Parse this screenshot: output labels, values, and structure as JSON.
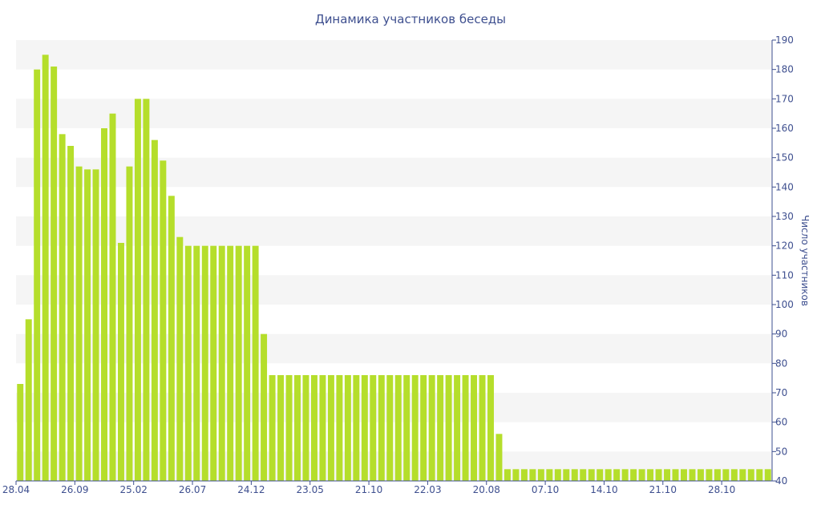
{
  "chart_data": {
    "type": "bar",
    "title": "Динамика участников беседы",
    "xlabel": "",
    "ylabel": "Число участников",
    "ylim": [
      40,
      190
    ],
    "y_ticks": [
      40,
      50,
      60,
      70,
      80,
      90,
      100,
      110,
      120,
      130,
      140,
      150,
      160,
      170,
      180,
      190
    ],
    "y_axis_side": "right",
    "grid": "alternating horizontal bands",
    "colors": {
      "bar": "#b5de2b",
      "band": "#f5f5f5",
      "axis": "#3e4f8f"
    },
    "x_tick_labels": [
      {
        "label": "28.04",
        "index": 0
      },
      {
        "label": "26.09",
        "index": 7
      },
      {
        "label": "25.02",
        "index": 14
      },
      {
        "label": "26.07",
        "index": 21
      },
      {
        "label": "24.12",
        "index": 28
      },
      {
        "label": "23.05",
        "index": 35
      },
      {
        "label": "21.10",
        "index": 42
      },
      {
        "label": "22.03",
        "index": 49
      },
      {
        "label": "20.08",
        "index": 56
      },
      {
        "label": "07.10",
        "index": 63
      },
      {
        "label": "14.10",
        "index": 70
      },
      {
        "label": "21.10",
        "index": 77
      },
      {
        "label": "28.10",
        "index": 84
      }
    ],
    "values": [
      73,
      95,
      180,
      185,
      181,
      158,
      154,
      147,
      146,
      146,
      160,
      165,
      121,
      147,
      170,
      170,
      156,
      149,
      137,
      123,
      120,
      120,
      120,
      120,
      120,
      120,
      120,
      120,
      120,
      90,
      76,
      76,
      76,
      76,
      76,
      76,
      76,
      76,
      76,
      76,
      76,
      76,
      76,
      76,
      76,
      76,
      76,
      76,
      76,
      76,
      76,
      76,
      76,
      76,
      76,
      76,
      76,
      56,
      44,
      44,
      44,
      44,
      44,
      44,
      44,
      44,
      44,
      44,
      44,
      44,
      44,
      44,
      44,
      44,
      44,
      44,
      44,
      44,
      44,
      44,
      44,
      44,
      44,
      44,
      44,
      44,
      44,
      44,
      44,
      44
    ]
  }
}
